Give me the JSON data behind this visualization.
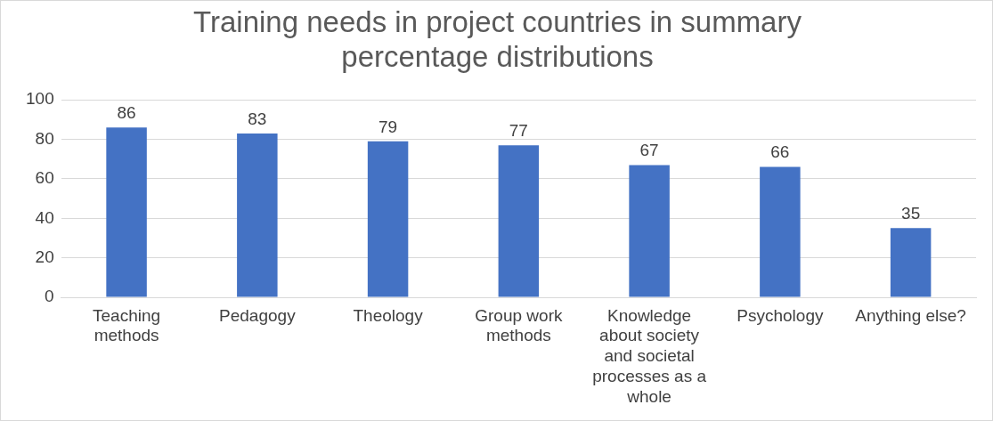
{
  "chart_data": {
    "type": "bar",
    "title": "Training needs in project countries in summary percentage distributions",
    "categories": [
      "Teaching methods",
      "Pedagogy",
      "Theology",
      "Group work methods",
      "Knowledge about society and societal processes as a whole",
      "Psychology",
      "Anything else?"
    ],
    "values": [
      86,
      83,
      79,
      77,
      67,
      66,
      35
    ],
    "color": "#4472c4",
    "ylim": [
      0,
      100
    ],
    "yticks": [
      0,
      20,
      40,
      60,
      80,
      100
    ],
    "grid": "y",
    "data_labels": true,
    "legend": false
  }
}
